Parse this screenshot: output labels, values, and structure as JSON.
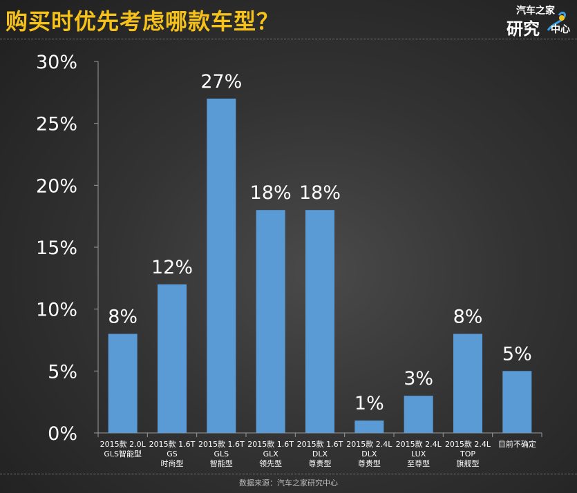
{
  "title": "购买时优先考虑哪款车型？",
  "logo": {
    "line1": "汽车之家",
    "line2": "研究",
    "line3": "中心"
  },
  "source": "数据来源：汽车之家研究中心",
  "colors": {
    "bar": "#5b9bd5",
    "title": "#f6c21a",
    "text": "#ffffff"
  },
  "chart_data": {
    "type": "bar",
    "title": "购买时优先考虑哪款车型？",
    "categories": [
      [
        "2015款 2.0L",
        "GLS智能型"
      ],
      [
        "2015款 1.6T",
        "GS",
        "时尚型"
      ],
      [
        "2015款 1.6T",
        "GLS",
        "智能型"
      ],
      [
        "2015款 1.6T",
        "GLX",
        "领先型"
      ],
      [
        "2015款 1.6T",
        "DLX",
        "尊贵型"
      ],
      [
        "2015款 2.4L",
        "DLX",
        "尊贵型"
      ],
      [
        "2015款 2.4L",
        "LUX",
        "至尊型"
      ],
      [
        "2015款 2.4L",
        "TOP",
        "旗舰型"
      ],
      [
        "目前不确定"
      ]
    ],
    "values": [
      8,
      12,
      27,
      18,
      18,
      1,
      3,
      8,
      5
    ],
    "value_labels": [
      "8%",
      "12%",
      "27%",
      "18%",
      "18%",
      "1%",
      "3%",
      "8%",
      "5%"
    ],
    "yticks": [
      "0%",
      "5%",
      "10%",
      "15%",
      "20%",
      "25%",
      "30%"
    ],
    "ylim": [
      0,
      30
    ],
    "grid": false,
    "legend": "none"
  }
}
